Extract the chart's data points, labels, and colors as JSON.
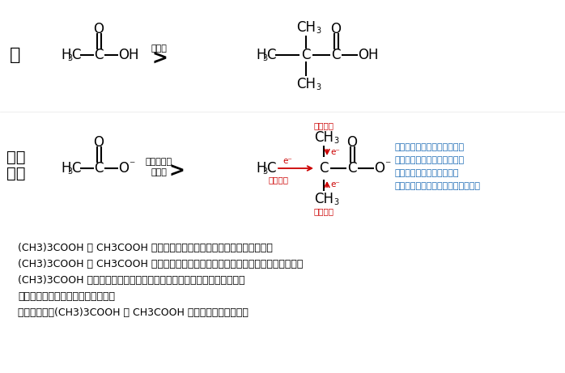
{
  "bg_color": "#ffffff",
  "red_color": "#cc0000",
  "blue_color": "#1a6ab5",
  "black_color": "#000000",
  "figsize": [
    6.98,
    4.61
  ],
  "dpi": 100,
  "section1_label": "酸",
  "section2_label_line1": "共役",
  "section2_label_line2": "塗基",
  "acid_sign": "酸性度",
  "conjugate_sign_line1": "共役塗基の",
  "conjugate_sign_line2": "安定性",
  "greater_than": ">",
  "line1": "(CH3)3COOH は CH3COOH にメチル基が３つ置換したものと捉えると、",
  "line2": "(CH3)3COOH は CH3COOH よりアルキル基の電子供与効果が相対的に大きいため、",
  "line3": "(CH3)3COOH は共役塗基の負電荷の非局在化の度合いが相対的に低く、",
  "line4": "共役塗基の安定性は相対的に低い。",
  "line5": "したがって、(CH3)3COOH は CH3COOH よりも酸性度は弱い。",
  "blue_text1": "アルキル基の電子供与により",
  "blue_text2": "共役塗基の負電荷の非局在化",
  "blue_text3": "の度合いは相対的に低く、",
  "blue_text4": "共役塗基の安定性は相対的に低い。",
  "elec_supply_top": "電子供与",
  "elec_supply_left": "電子供与",
  "elec_supply_bottom": "電子供与"
}
